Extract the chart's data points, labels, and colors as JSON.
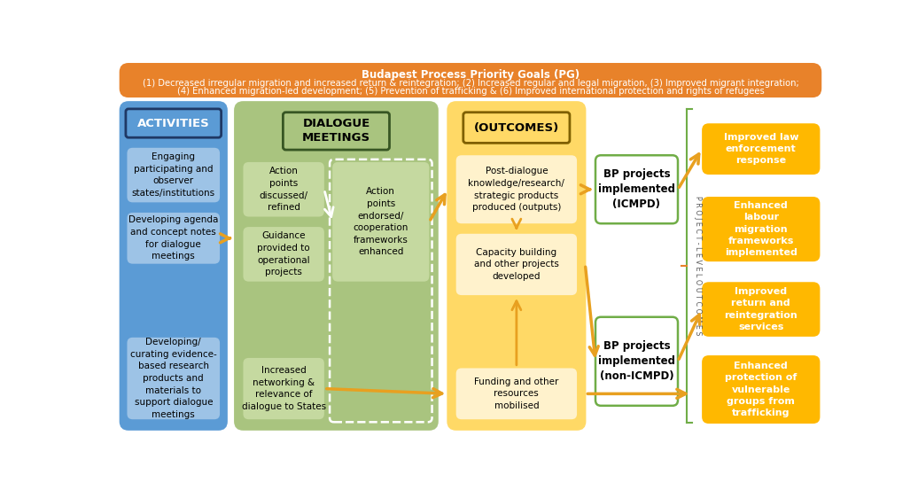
{
  "title_bold": "Budapest Process Priority Goals (PG)",
  "title_sub1": "(1) Decreased irregular migration and increased return & reintegration; (2) Increased regular and legal migration, (3) Improved migrant integration;",
  "title_sub2": "(4) Enhanced migration-led development; (5) Prevention of trafficking & (6) Improved international protection and rights of refugees",
  "header_bg": "#E8822A",
  "header_text_color": "#FFFFFF",
  "activities_bg": "#5B9BD5",
  "activities_inner_bg": "#9DC3E6",
  "activities_title": "ACTIVITIES",
  "activities_items": [
    "Engaging\nparticipating and\nobserver\nstates/institutions",
    "Developing agenda\nand concept notes\nfor dialogue\nmeetings",
    "Developing/\ncurating evidence-\nbased research\nproducts and\nmaterials to\nsupport dialogue\nmeetings"
  ],
  "dialogue_bg": "#A9C47F",
  "dialogue_inner_bg": "#C5D9A0",
  "dialogue_title": "DIALOGUE\nMEETINGS",
  "dialogue_left_items": [
    "Action\npoints\ndiscussed/\nrefined",
    "Guidance\nprovided to\noperational\nprojects",
    "Increased\nnetworking &\nrelevance of\ndialogue to States"
  ],
  "dialogue_right_item": "Action\npoints\nendorsed/\ncooperation\nframeworks\nenhanced",
  "outcomes_bg": "#FFD966",
  "outcomes_inner_bg": "#FFF2CC",
  "outcomes_title": "(OUTCOMES)",
  "outcomes_items": [
    "Post-dialogue\nknowledge/research/\nstrategic products\nproduced (outputs)",
    "Capacity building\nand other projects\ndeveloped",
    "Funding and other\nresources\nmobilised"
  ],
  "project_box_bg": "#FFFFFF",
  "project_box_border": "#70AD47",
  "project_items": [
    "BP projects\nimplemented\n(ICMPD)",
    "BP projects\nimplemented\n(non-ICMPD)"
  ],
  "project_label": "P R O J E C T - L E V E L O U T C O M E S",
  "bracket_color": "#E8822A",
  "bracket_line_color": "#70AD47",
  "outcomes_right_bg": "#FFB800",
  "outcomes_right_items": [
    "Improved law\nenforcement\nresponse",
    "Enhanced\nlabour\nmigration\nframeworks\nimplemented",
    "Improved\nreturn and\nreintegration\nservices",
    "Enhanced\nprotection of\nvulnerable\ngroups from\ntrafficking"
  ],
  "arrow_color": "#E8A020",
  "white_arrow_color": "#FFFFFF"
}
